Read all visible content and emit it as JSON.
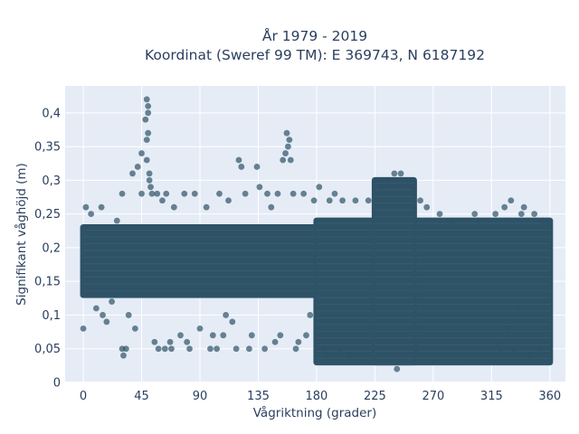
{
  "chart_data": {
    "type": "scatter",
    "title_line1": "År 1979 - 2019",
    "title_line2": "Koordinat (Sweref 99 TM): E 369743, N 6187192",
    "xlabel": "Vågriktning (grader)",
    "ylabel": "Signifikant våghöjd (m)",
    "xlim": [
      -14,
      372
    ],
    "ylim": [
      0,
      0.44
    ],
    "grid": true,
    "x_ticks": [
      {
        "value": 0,
        "label": "0"
      },
      {
        "value": 45,
        "label": "45"
      },
      {
        "value": 90,
        "label": "90"
      },
      {
        "value": 135,
        "label": "135"
      },
      {
        "value": 180,
        "label": "180"
      },
      {
        "value": 225,
        "label": "225"
      },
      {
        "value": 270,
        "label": "270"
      },
      {
        "value": 315,
        "label": "315"
      },
      {
        "value": 360,
        "label": "360"
      }
    ],
    "y_ticks": [
      {
        "value": 0,
        "label": "0"
      },
      {
        "value": 0.05,
        "label": "0,05"
      },
      {
        "value": 0.1,
        "label": "0,1"
      },
      {
        "value": 0.15,
        "label": "0,15"
      },
      {
        "value": 0.2,
        "label": "0,2"
      },
      {
        "value": 0.25,
        "label": "0,25"
      },
      {
        "value": 0.3,
        "label": "0,3"
      },
      {
        "value": 0.35,
        "label": "0,35"
      },
      {
        "value": 0.4,
        "label": "0,4"
      }
    ],
    "marker_color": "#2e5266",
    "marker_opacity": 0.7,
    "background_color": "#e5ecf6",
    "dense_bands": [
      {
        "x": [
          0,
          180
        ],
        "y": [
          0.13,
          0.23
        ]
      },
      {
        "x": [
          180,
          360
        ],
        "y": [
          0.03,
          0.24
        ]
      },
      {
        "x": [
          225,
          255
        ],
        "y": [
          0.03,
          0.3
        ]
      }
    ],
    "points": [
      [
        0,
        0.08
      ],
      [
        2,
        0.26
      ],
      [
        6,
        0.25
      ],
      [
        10,
        0.11
      ],
      [
        14,
        0.26
      ],
      [
        15,
        0.1
      ],
      [
        18,
        0.09
      ],
      [
        22,
        0.12
      ],
      [
        26,
        0.24
      ],
      [
        30,
        0.28
      ],
      [
        30,
        0.05
      ],
      [
        31,
        0.04
      ],
      [
        33,
        0.05
      ],
      [
        35,
        0.1
      ],
      [
        38,
        0.31
      ],
      [
        40,
        0.08
      ],
      [
        42,
        0.32
      ],
      [
        45,
        0.34
      ],
      [
        45,
        0.28
      ],
      [
        48,
        0.39
      ],
      [
        49,
        0.42
      ],
      [
        49,
        0.36
      ],
      [
        49,
        0.33
      ],
      [
        50,
        0.41
      ],
      [
        50,
        0.4
      ],
      [
        50,
        0.37
      ],
      [
        51,
        0.31
      ],
      [
        51,
        0.3
      ],
      [
        52,
        0.29
      ],
      [
        53,
        0.28
      ],
      [
        55,
        0.06
      ],
      [
        57,
        0.28
      ],
      [
        58,
        0.05
      ],
      [
        61,
        0.27
      ],
      [
        63,
        0.05
      ],
      [
        64,
        0.28
      ],
      [
        67,
        0.06
      ],
      [
        68,
        0.05
      ],
      [
        70,
        0.26
      ],
      [
        75,
        0.07
      ],
      [
        78,
        0.28
      ],
      [
        80,
        0.06
      ],
      [
        82,
        0.05
      ],
      [
        86,
        0.28
      ],
      [
        90,
        0.08
      ],
      [
        95,
        0.26
      ],
      [
        98,
        0.05
      ],
      [
        100,
        0.07
      ],
      [
        103,
        0.05
      ],
      [
        105,
        0.28
      ],
      [
        108,
        0.07
      ],
      [
        110,
        0.1
      ],
      [
        112,
        0.27
      ],
      [
        115,
        0.09
      ],
      [
        118,
        0.05
      ],
      [
        120,
        0.33
      ],
      [
        122,
        0.32
      ],
      [
        125,
        0.28
      ],
      [
        128,
        0.05
      ],
      [
        130,
        0.07
      ],
      [
        134,
        0.32
      ],
      [
        136,
        0.29
      ],
      [
        140,
        0.05
      ],
      [
        142,
        0.28
      ],
      [
        145,
        0.26
      ],
      [
        148,
        0.06
      ],
      [
        150,
        0.28
      ],
      [
        152,
        0.07
      ],
      [
        154,
        0.33
      ],
      [
        156,
        0.34
      ],
      [
        157,
        0.37
      ],
      [
        158,
        0.35
      ],
      [
        159,
        0.36
      ],
      [
        160,
        0.33
      ],
      [
        162,
        0.28
      ],
      [
        164,
        0.05
      ],
      [
        166,
        0.06
      ],
      [
        170,
        0.28
      ],
      [
        172,
        0.07
      ],
      [
        175,
        0.1
      ],
      [
        178,
        0.27
      ],
      [
        182,
        0.29
      ],
      [
        185,
        0.05
      ],
      [
        188,
        0.04
      ],
      [
        190,
        0.27
      ],
      [
        194,
        0.28
      ],
      [
        198,
        0.05
      ],
      [
        200,
        0.27
      ],
      [
        205,
        0.04
      ],
      [
        210,
        0.27
      ],
      [
        215,
        0.03
      ],
      [
        220,
        0.27
      ],
      [
        230,
        0.29
      ],
      [
        235,
        0.3
      ],
      [
        240,
        0.31
      ],
      [
        242,
        0.02
      ],
      [
        245,
        0.31
      ],
      [
        250,
        0.3
      ],
      [
        255,
        0.29
      ],
      [
        260,
        0.27
      ],
      [
        265,
        0.26
      ],
      [
        270,
        0.03
      ],
      [
        275,
        0.25
      ],
      [
        285,
        0.24
      ],
      [
        300,
        0.03
      ],
      [
        302,
        0.25
      ],
      [
        305,
        0.24
      ],
      [
        318,
        0.25
      ],
      [
        320,
        0.06
      ],
      [
        322,
        0.05
      ],
      [
        325,
        0.26
      ],
      [
        328,
        0.08
      ],
      [
        330,
        0.27
      ],
      [
        332,
        0.05
      ],
      [
        335,
        0.11
      ],
      [
        338,
        0.25
      ],
      [
        340,
        0.26
      ],
      [
        345,
        0.04
      ],
      [
        348,
        0.25
      ],
      [
        352,
        0.05
      ],
      [
        355,
        0.24
      ],
      [
        358,
        0.24
      ],
      [
        360,
        0.15
      ]
    ]
  }
}
